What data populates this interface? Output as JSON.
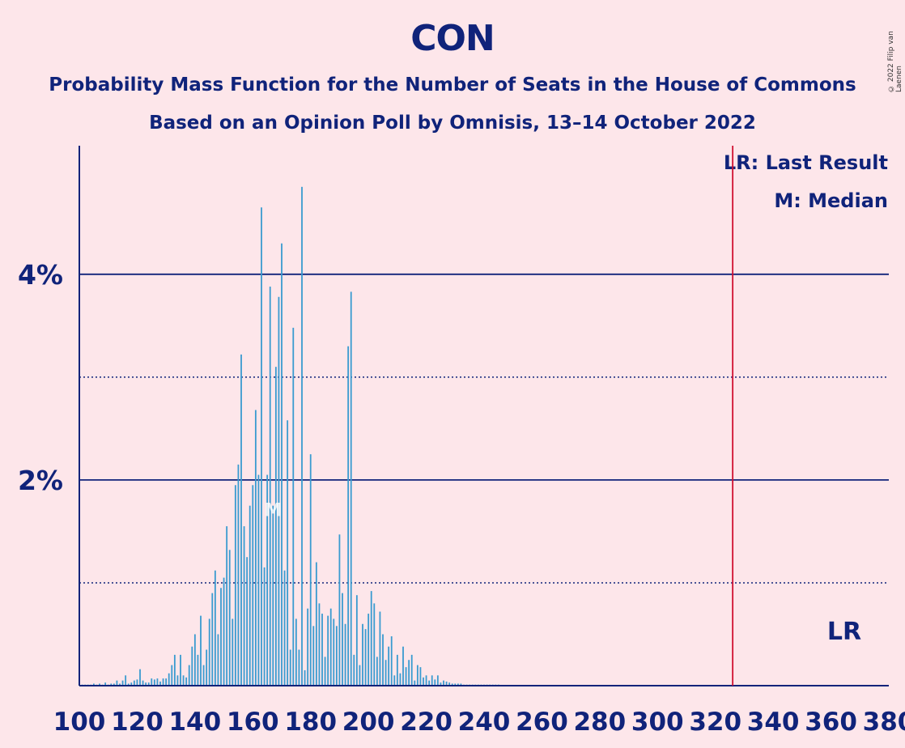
{
  "chart_data": {
    "type": "bar",
    "title": "CON",
    "subtitle": "Probability Mass Function for the Number of Seats in the House of Commons",
    "subtitle2": "Based on an Opinion Poll by Omnisis, 13–14 October 2022",
    "copyright": "© 2022 Filip van Laenen",
    "xlim": [
      100,
      380
    ],
    "ylim": [
      0,
      5.25
    ],
    "x_ticks": [
      "100",
      "120",
      "140",
      "160",
      "180",
      "200",
      "220",
      "240",
      "260",
      "280",
      "300",
      "320",
      "340",
      "360",
      "380"
    ],
    "y_ticks": [
      {
        "value": 2,
        "label": "2%"
      },
      {
        "value": 4,
        "label": "4%"
      }
    ],
    "dotted_gridlines": [
      1,
      3
    ],
    "legend": [
      "LR: Last Result",
      "M: Median"
    ],
    "legend_position": "top-right",
    "last_result": {
      "x": 326,
      "label": "LR"
    },
    "median": {
      "x": 167,
      "label": "M"
    },
    "bar_color": "#3a9bd0",
    "axis_color": "#10237a",
    "lr_color": "#d01030",
    "background": "#fde6ea",
    "x": [
      100,
      101,
      102,
      103,
      104,
      105,
      106,
      107,
      108,
      109,
      110,
      111,
      112,
      113,
      114,
      115,
      116,
      117,
      118,
      119,
      120,
      121,
      122,
      123,
      124,
      125,
      126,
      127,
      128,
      129,
      130,
      131,
      132,
      133,
      134,
      135,
      136,
      137,
      138,
      139,
      140,
      141,
      142,
      143,
      144,
      145,
      146,
      147,
      148,
      149,
      150,
      151,
      152,
      153,
      154,
      155,
      156,
      157,
      158,
      159,
      160,
      161,
      162,
      163,
      164,
      165,
      166,
      167,
      168,
      169,
      170,
      171,
      172,
      173,
      174,
      175,
      176,
      177,
      178,
      179,
      180,
      181,
      182,
      183,
      184,
      185,
      186,
      187,
      188,
      189,
      190,
      191,
      192,
      193,
      194,
      195,
      196,
      197,
      198,
      199,
      200,
      201,
      202,
      203,
      204,
      205,
      206,
      207,
      208,
      209,
      210,
      211,
      212,
      213,
      214,
      215,
      216,
      217,
      218,
      219,
      220,
      221,
      222,
      223,
      224,
      225,
      226,
      227,
      228,
      229,
      230,
      231,
      232,
      233,
      234,
      235,
      236,
      237,
      238,
      239,
      240,
      241,
      242,
      243,
      244,
      245
    ],
    "values": [
      0.01,
      0.01,
      0.01,
      0.01,
      0.01,
      0.02,
      0.01,
      0.02,
      0.01,
      0.03,
      0.01,
      0.02,
      0.02,
      0.05,
      0.02,
      0.05,
      0.1,
      0.02,
      0.03,
      0.05,
      0.06,
      0.16,
      0.05,
      0.03,
      0.03,
      0.07,
      0.06,
      0.07,
      0.04,
      0.07,
      0.07,
      0.12,
      0.2,
      0.3,
      0.1,
      0.3,
      0.1,
      0.08,
      0.2,
      0.38,
      0.5,
      0.3,
      0.68,
      0.2,
      0.35,
      0.65,
      0.9,
      1.12,
      0.5,
      0.95,
      1.05,
      1.55,
      1.32,
      0.65,
      1.95,
      2.15,
      3.22,
      1.55,
      1.25,
      1.75,
      1.95,
      2.68,
      2.05,
      4.65,
      1.15,
      2.05,
      3.88,
      1.75,
      3.1,
      3.78,
      4.3,
      1.12,
      2.58,
      0.35,
      3.48,
      0.65,
      0.35,
      4.85,
      0.15,
      0.75,
      2.25,
      0.58,
      1.2,
      0.8,
      0.7,
      0.28,
      0.68,
      0.75,
      0.65,
      0.58,
      1.47,
      0.9,
      0.6,
      3.3,
      3.83,
      0.3,
      0.88,
      0.2,
      0.6,
      0.55,
      0.7,
      0.92,
      0.8,
      0.28,
      0.72,
      0.5,
      0.25,
      0.38,
      0.48,
      0.1,
      0.3,
      0.12,
      0.38,
      0.18,
      0.25,
      0.3,
      0.05,
      0.2,
      0.18,
      0.08,
      0.1,
      0.05,
      0.1,
      0.06,
      0.1,
      0.03,
      0.05,
      0.04,
      0.03,
      0.02,
      0.02,
      0.02,
      0.02,
      0.01,
      0.01,
      0.01,
      0.01,
      0.01,
      0.01,
      0.01,
      0.01,
      0.01,
      0.01,
      0.01,
      0.01,
      0.01
    ]
  }
}
